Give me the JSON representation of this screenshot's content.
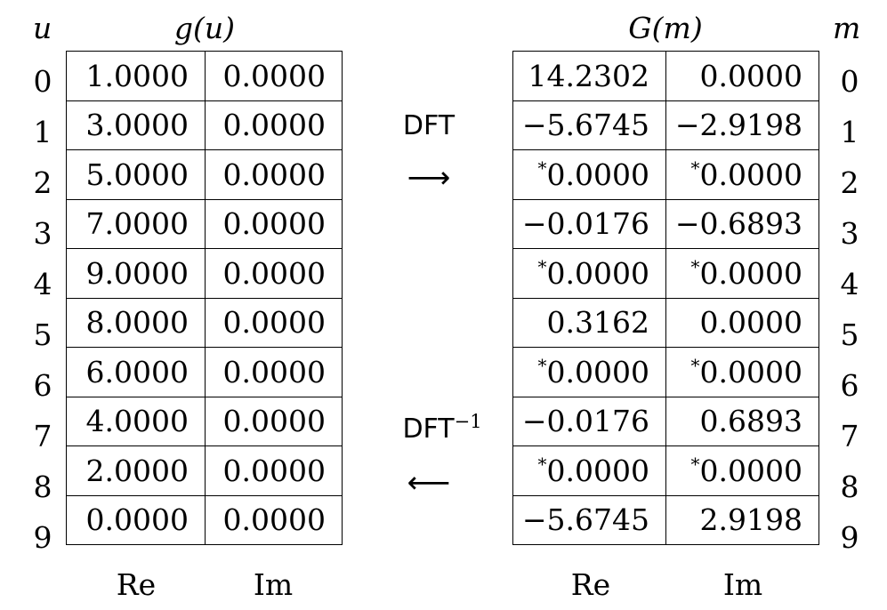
{
  "left": {
    "index_label": "u",
    "header": "g(u)",
    "col_labels": [
      "Re",
      "Im"
    ],
    "indices": [
      "0",
      "1",
      "2",
      "3",
      "4",
      "5",
      "6",
      "7",
      "8",
      "9"
    ],
    "rows": [
      [
        "1.0000",
        "0.0000"
      ],
      [
        "3.0000",
        "0.0000"
      ],
      [
        "5.0000",
        "0.0000"
      ],
      [
        "7.0000",
        "0.0000"
      ],
      [
        "9.0000",
        "0.0000"
      ],
      [
        "8.0000",
        "0.0000"
      ],
      [
        "6.0000",
        "0.0000"
      ],
      [
        "4.0000",
        "0.0000"
      ],
      [
        "2.0000",
        "0.0000"
      ],
      [
        "0.0000",
        "0.0000"
      ]
    ]
  },
  "right": {
    "index_label": "m",
    "header": "G(m)",
    "col_labels": [
      "Re",
      "Im"
    ],
    "indices": [
      "0",
      "1",
      "2",
      "3",
      "4",
      "5",
      "6",
      "7",
      "8",
      "9"
    ],
    "rows": [
      [
        "14.2302",
        "0.0000"
      ],
      [
        "−5.6745",
        "−2.9198"
      ],
      [
        "*0.0000",
        "*0.0000"
      ],
      [
        "−0.0176",
        "−0.6893"
      ],
      [
        "*0.0000",
        "*0.0000"
      ],
      [
        "0.3162",
        "0.0000"
      ],
      [
        "*0.0000",
        "*0.0000"
      ],
      [
        "−0.0176",
        "0.6893"
      ],
      [
        "*0.0000",
        "*0.0000"
      ],
      [
        "−5.6745",
        "2.9198"
      ]
    ]
  },
  "forward": {
    "label": "DFT",
    "arrow": "⟶"
  },
  "inverse": {
    "label": "DFT",
    "exponent": "−1",
    "arrow": "⟵"
  }
}
